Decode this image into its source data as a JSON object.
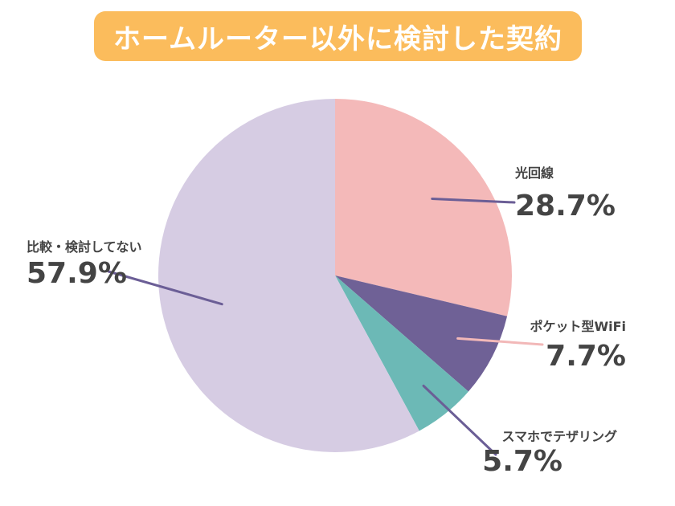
{
  "title": "ホームルーター以外に検討した契約",
  "colors": {
    "title_bg": "#fbbc5c"
  },
  "chart_data": {
    "type": "pie",
    "title": "ホームルーター以外に検討した契約",
    "slices": [
      {
        "label": "光回線",
        "value": 28.7,
        "value_label": "28.7%",
        "color": "#f4b9b9",
        "leader_color": "#6b5e96"
      },
      {
        "label": "ポケット型WiFi",
        "value": 7.7,
        "value_label": "7.7%",
        "color": "#6f6196",
        "leader_color": "#f2b8b8"
      },
      {
        "label": "スマホでテザリング",
        "value": 5.7,
        "value_label": "5.7%",
        "color": "#6cb9b6",
        "leader_color": "#6b5e96"
      },
      {
        "label": "比較・検討してない",
        "value": 57.9,
        "value_label": "57.9%",
        "color": "#d6cce3",
        "leader_color": "#6b5e96"
      }
    ],
    "start_angle": "12 o'clock",
    "direction": "clockwise",
    "legend": "none"
  }
}
